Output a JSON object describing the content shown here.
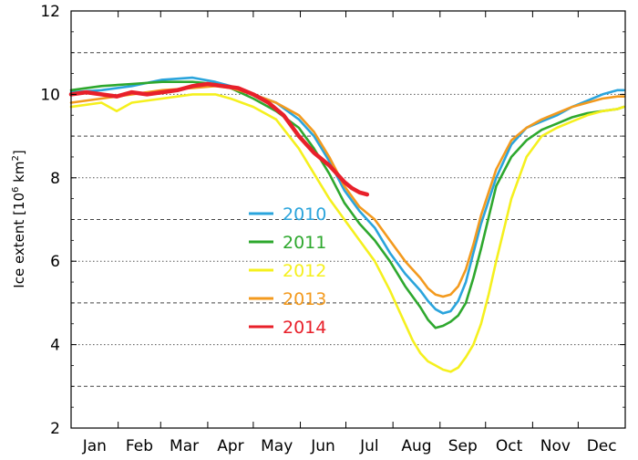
{
  "chart_data": {
    "type": "line",
    "ylabel_main": "Ice extent [10",
    "ylabel_sup": "6",
    "ylabel_unit": " km",
    "ylabel_sup2": "2",
    "ylabel_close": "]",
    "ylim": [
      2,
      12
    ],
    "xlim": [
      0,
      365
    ],
    "yticks": [
      "2",
      "4",
      "6",
      "8",
      "10",
      "12"
    ],
    "ytick_values": [
      2,
      4,
      6,
      8,
      10,
      12
    ],
    "grid_dashed_y": [
      3,
      5,
      7,
      9,
      11
    ],
    "grid_dotted_y": [
      4,
      6,
      8,
      10
    ],
    "months": [
      "Jan",
      "Feb",
      "Mar",
      "Apr",
      "May",
      "Jun",
      "Jul",
      "Aug",
      "Sep",
      "Oct",
      "Nov",
      "Dec"
    ],
    "month_starts": [
      0,
      31,
      59,
      90,
      120,
      151,
      181,
      212,
      243,
      273,
      304,
      334
    ],
    "legend_placement": "center-left",
    "series": [
      {
        "name": "2010",
        "color": "#2aa4dc",
        "x": [
          0,
          20,
          40,
          60,
          80,
          95,
          105,
          120,
          135,
          150,
          160,
          170,
          180,
          190,
          200,
          210,
          220,
          230,
          235,
          240,
          245,
          250,
          255,
          260,
          265,
          270,
          280,
          290,
          300,
          310,
          320,
          330,
          340,
          350,
          360,
          364
        ],
        "y": [
          10.05,
          10.1,
          10.2,
          10.35,
          10.4,
          10.3,
          10.2,
          10.0,
          9.8,
          9.4,
          9.0,
          8.4,
          7.7,
          7.2,
          6.8,
          6.2,
          5.7,
          5.3,
          5.05,
          4.85,
          4.75,
          4.8,
          5.05,
          5.5,
          6.2,
          6.9,
          8.0,
          8.8,
          9.2,
          9.35,
          9.5,
          9.7,
          9.85,
          10.0,
          10.1,
          10.1
        ]
      },
      {
        "name": "2011",
        "color": "#2ea82e",
        "x": [
          0,
          20,
          40,
          60,
          80,
          95,
          105,
          120,
          135,
          150,
          160,
          170,
          180,
          190,
          200,
          210,
          220,
          230,
          235,
          240,
          245,
          250,
          255,
          260,
          265,
          270,
          280,
          290,
          300,
          310,
          320,
          330,
          340,
          350,
          360,
          364
        ],
        "y": [
          10.1,
          10.2,
          10.25,
          10.3,
          10.3,
          10.25,
          10.15,
          9.9,
          9.6,
          9.2,
          8.7,
          8.1,
          7.4,
          6.9,
          6.5,
          6.0,
          5.4,
          4.9,
          4.6,
          4.4,
          4.45,
          4.55,
          4.7,
          5.0,
          5.6,
          6.3,
          7.8,
          8.5,
          8.9,
          9.15,
          9.3,
          9.45,
          9.55,
          9.6,
          9.65,
          9.7
        ]
      },
      {
        "name": "2012",
        "color": "#f5f01e",
        "x": [
          0,
          20,
          30,
          40,
          60,
          80,
          95,
          105,
          120,
          135,
          150,
          160,
          170,
          180,
          190,
          200,
          210,
          215,
          220,
          225,
          230,
          235,
          240,
          245,
          250,
          255,
          260,
          265,
          270,
          275,
          280,
          290,
          300,
          310,
          320,
          330,
          340,
          350,
          360,
          364
        ],
        "y": [
          9.7,
          9.8,
          9.6,
          9.8,
          9.9,
          10.0,
          10.0,
          9.9,
          9.7,
          9.4,
          8.7,
          8.1,
          7.5,
          7.0,
          6.5,
          6.0,
          5.3,
          4.9,
          4.5,
          4.1,
          3.8,
          3.6,
          3.5,
          3.4,
          3.35,
          3.45,
          3.7,
          4.0,
          4.5,
          5.2,
          6.0,
          7.5,
          8.5,
          9.0,
          9.2,
          9.35,
          9.5,
          9.6,
          9.65,
          9.7
        ]
      },
      {
        "name": "2013",
        "color": "#f39a1e",
        "x": [
          0,
          20,
          40,
          60,
          80,
          95,
          105,
          120,
          135,
          150,
          160,
          170,
          180,
          190,
          200,
          210,
          220,
          230,
          235,
          240,
          245,
          250,
          255,
          260,
          265,
          270,
          280,
          290,
          300,
          310,
          320,
          330,
          340,
          350,
          360,
          364
        ],
        "y": [
          9.8,
          9.9,
          10.0,
          10.1,
          10.15,
          10.2,
          10.15,
          10.0,
          9.8,
          9.5,
          9.1,
          8.5,
          7.8,
          7.3,
          7.0,
          6.5,
          6.0,
          5.6,
          5.35,
          5.2,
          5.15,
          5.2,
          5.4,
          5.8,
          6.4,
          7.1,
          8.2,
          8.9,
          9.2,
          9.4,
          9.55,
          9.7,
          9.8,
          9.9,
          9.95,
          9.95
        ]
      },
      {
        "name": "2014",
        "color": "#e8202a",
        "x": [
          0,
          10,
          20,
          30,
          40,
          50,
          60,
          70,
          80,
          90,
          100,
          110,
          120,
          130,
          140,
          150,
          160,
          170,
          180,
          185,
          190,
          195
        ],
        "y": [
          10.0,
          10.05,
          10.0,
          9.95,
          10.05,
          10.0,
          10.05,
          10.1,
          10.2,
          10.25,
          10.2,
          10.15,
          10.0,
          9.8,
          9.5,
          9.0,
          8.6,
          8.3,
          7.9,
          7.75,
          7.65,
          7.6
        ]
      }
    ]
  }
}
